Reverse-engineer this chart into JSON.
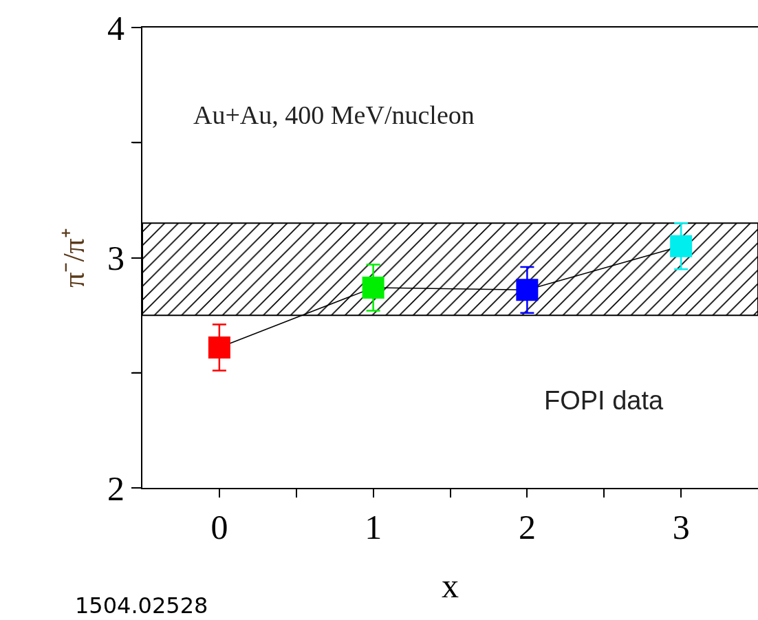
{
  "chart_data": {
    "type": "line",
    "xlabel": "x",
    "ylabel": "π⁻/π⁺",
    "x": [
      0,
      1,
      2,
      3
    ],
    "series": [
      {
        "color": "#000000",
        "colors": [
          "#ff0000",
          "#00ee00",
          "#0000ff",
          "#00eeee"
        ],
        "values": [
          2.61,
          2.87,
          2.86,
          3.05
        ],
        "errors": [
          0.1,
          0.1,
          0.1,
          0.1
        ]
      }
    ],
    "xlim": [
      -0.5,
      3.5
    ],
    "xticks": [
      0,
      {
        "value": 0.5,
        "label": null
      },
      1,
      {
        "value": 1.5,
        "label": null
      },
      2,
      {
        "value": 2.5,
        "label": null
      },
      3
    ],
    "ylim": [
      2,
      4
    ],
    "yticks": [
      2,
      {
        "value": 2.5,
        "label": null
      },
      3,
      {
        "value": 3.5,
        "label": null
      },
      4
    ],
    "bands": [
      {
        "axis": "y",
        "from": 2.75,
        "to": 3.15,
        "color": "#000000"
      }
    ],
    "annotations": [
      "Au+Au, 400 MeV/nucleon",
      "FOPI data",
      "1504.02528"
    ],
    "marker": "square",
    "line_style": "solid"
  }
}
